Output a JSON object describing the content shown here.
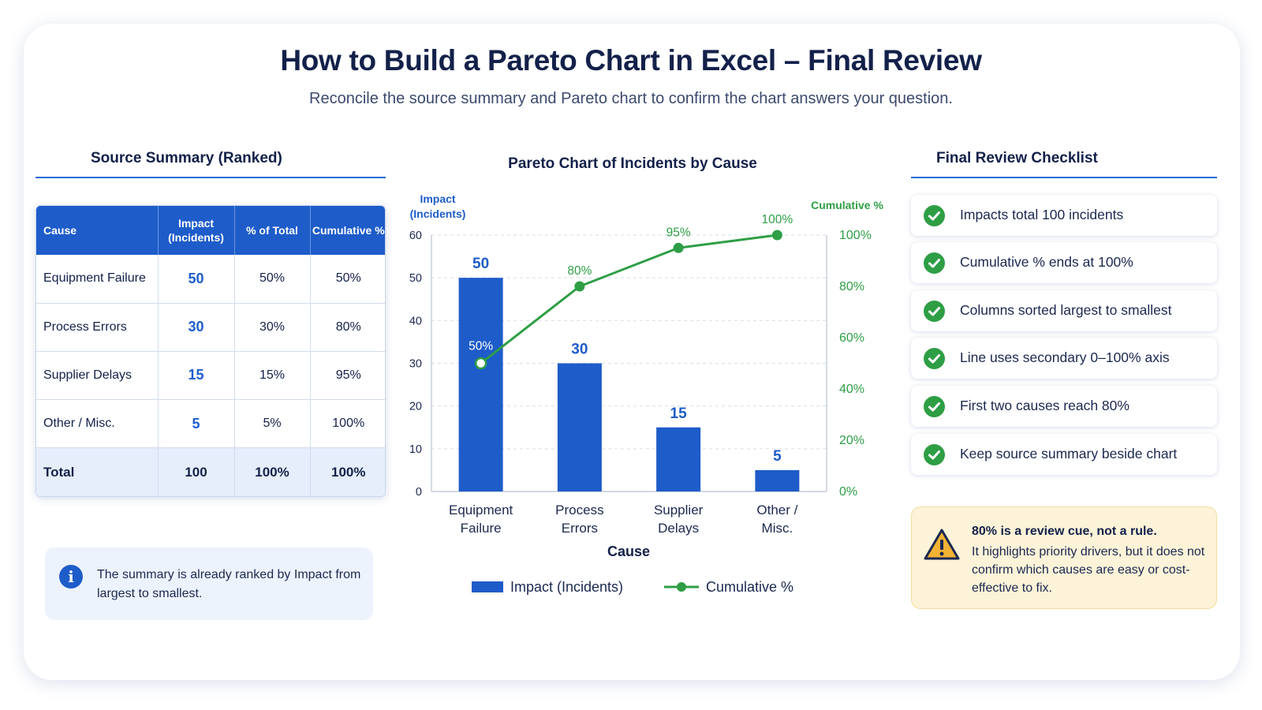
{
  "header": {
    "title": "How to Build a Pareto Chart in Excel – Final Review",
    "subtitle": "Reconcile the source summary and Pareto chart to confirm the chart answers your question."
  },
  "source_summary": {
    "title": "Source Summary (Ranked)",
    "columns": [
      "Cause",
      "Impact\n(Incidents)",
      "% of Total",
      "Cumulative %"
    ],
    "rows": [
      {
        "cause": "Equipment Failure",
        "impact": "50",
        "pct": "50%",
        "cum": "50%"
      },
      {
        "cause": "Process Errors",
        "impact": "30",
        "pct": "30%",
        "cum": "80%"
      },
      {
        "cause": "Supplier Delays",
        "impact": "15",
        "pct": "15%",
        "cum": "95%"
      },
      {
        "cause": "Other / Misc.",
        "impact": "5",
        "pct": "5%",
        "cum": "100%"
      }
    ],
    "total": {
      "cause": "Total",
      "impact": "100",
      "pct": "100%",
      "cum": "100%"
    }
  },
  "info_note": "The summary is already ranked by Impact from largest to smallest.",
  "chart_data": {
    "type": "bar",
    "title": "Pareto Chart of Incidents by Cause",
    "categories": [
      "Equipment\nFailure",
      "Process\nErrors",
      "Supplier\nDelays",
      "Other /\nMisc."
    ],
    "series": [
      {
        "name": "Impact (Incidents)",
        "type": "bar",
        "axis": "left",
        "values": [
          50,
          30,
          15,
          5
        ],
        "color": "#1e5cc9"
      },
      {
        "name": "Cumulative %",
        "type": "line",
        "axis": "right",
        "values": [
          50,
          80,
          95,
          100
        ],
        "color": "#2e9e45"
      }
    ],
    "xlabel": "Cause",
    "ylabel": "Impact\n(Incidents)",
    "y2label": "Cumulative %",
    "ylim": [
      0,
      60
    ],
    "yticks": [
      0,
      10,
      20,
      30,
      40,
      50,
      60
    ],
    "y2lim": [
      0,
      100
    ],
    "y2ticks": [
      "0%",
      "20%",
      "40%",
      "60%",
      "80%",
      "100%"
    ],
    "bar_labels": [
      "50",
      "30",
      "15",
      "5"
    ],
    "line_labels": [
      "50%",
      "80%",
      "95%",
      "100%"
    ],
    "grid": "horizontal dashed",
    "legend": "bottom"
  },
  "checklist": {
    "title": "Final Review Checklist",
    "items": [
      "Impacts total 100 incidents",
      "Cumulative % ends at 100%",
      "Columns sorted largest to smallest",
      "Line uses secondary 0–100% axis",
      "First two causes reach 80%",
      "Keep source summary beside chart"
    ]
  },
  "warning": {
    "title": "80% is a review cue, not a rule.",
    "text": "It highlights priority drivers, but it does not confirm which causes are easy or cost-effective to fix."
  },
  "colors": {
    "primary_blue": "#1e5cc9",
    "line_green": "#2e9e45",
    "title_navy": "#13214a",
    "warning_bg": "#fcf3d8"
  }
}
